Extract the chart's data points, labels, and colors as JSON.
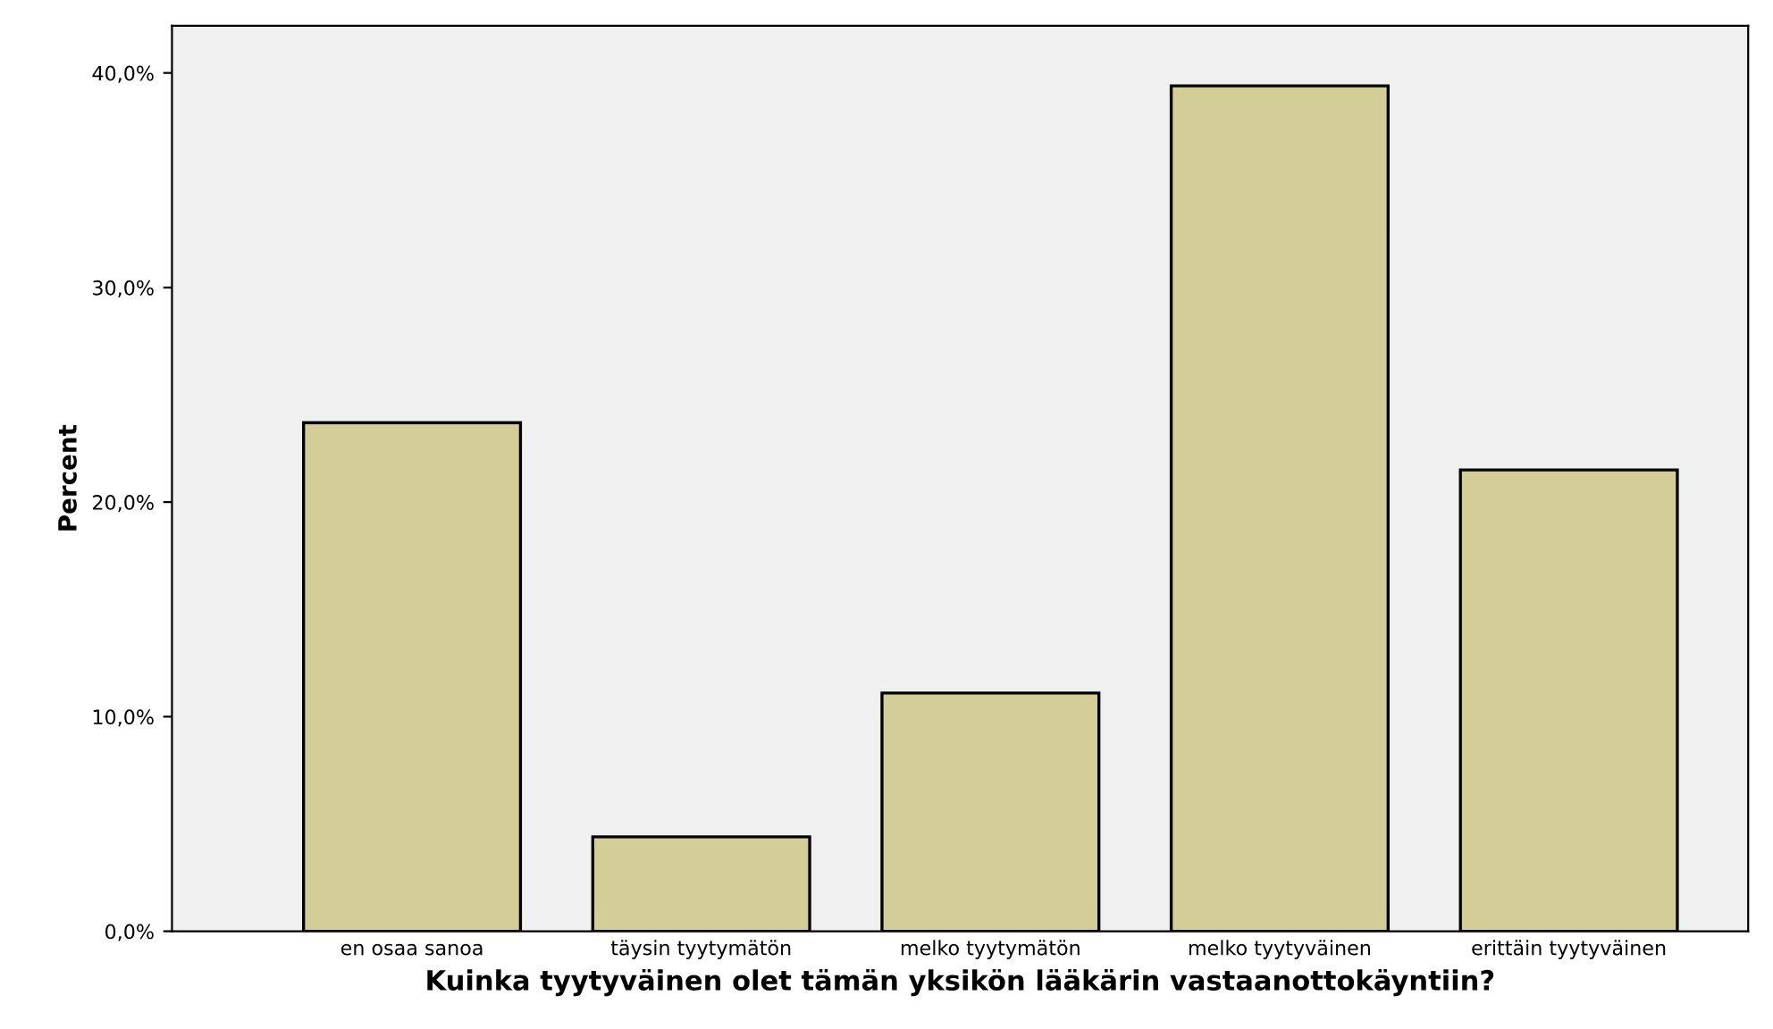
{
  "chart_data": {
    "type": "bar",
    "xlabel": "Kuinka tyytyväinen olet tämän yksikön lääkärin vastaanottokäyntiin?",
    "ylabel": "Percent",
    "categories": [
      "en osaa sanoa",
      "täysin tyytymätön",
      "melko tyytymätön",
      "melko tyytyväinen",
      "erittäin tyytyväinen"
    ],
    "values": [
      23.7,
      4.4,
      11.1,
      39.4,
      21.5
    ],
    "color": "#d3ce97",
    "ylim": [
      0,
      42.2
    ],
    "yticks": [
      {
        "value": 0,
        "label": "0,0%"
      },
      {
        "value": 10,
        "label": "10,0%"
      },
      {
        "value": 20,
        "label": "20,0%"
      },
      {
        "value": 30,
        "label": "30,0%"
      },
      {
        "value": 40,
        "label": "40,0%"
      }
    ],
    "grid": false
  }
}
